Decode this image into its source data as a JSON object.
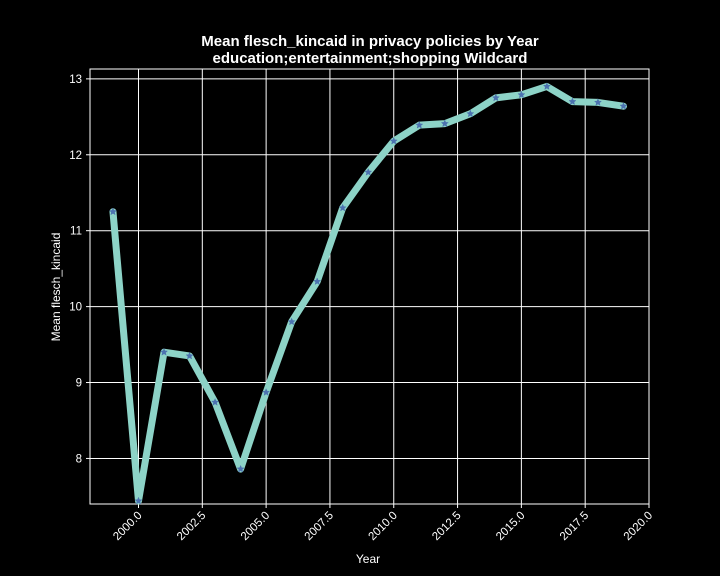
{
  "chart_data": {
    "type": "line",
    "title": "Mean flesch_kincaid in privacy policies by Year",
    "subtitle": "education;entertainment;shopping Wildcard",
    "xlabel": "Year",
    "ylabel": "Mean flesch_kincaid",
    "xlim": [
      1998.1,
      2020.0
    ],
    "ylim": [
      7.4,
      13.13
    ],
    "xticks": [
      "2000.0",
      "2002.5",
      "2005.0",
      "2007.5",
      "2010.0",
      "2012.5",
      "2015.0",
      "2017.5",
      "2020.0"
    ],
    "xtick_values": [
      2000.0,
      2002.5,
      2005.0,
      2007.5,
      2010.0,
      2012.5,
      2015.0,
      2017.5,
      2020.0
    ],
    "yticks": [
      "8",
      "9",
      "10",
      "11",
      "12",
      "13"
    ],
    "ytick_values": [
      8,
      9,
      10,
      11,
      12,
      13
    ],
    "grid": true,
    "series": [
      {
        "x": [
          1999,
          2000,
          2001,
          2002,
          2003,
          2004,
          2005,
          2006,
          2007,
          2008,
          2009,
          2010,
          2011,
          2012,
          2013,
          2014,
          2015,
          2016,
          2017,
          2018,
          2019
        ],
        "values": [
          11.25,
          7.44,
          9.4,
          9.35,
          8.74,
          7.86,
          8.87,
          9.8,
          10.33,
          11.3,
          11.77,
          12.18,
          12.39,
          12.41,
          12.54,
          12.75,
          12.79,
          12.9,
          12.7,
          12.69,
          12.64
        ],
        "line_color": "#8dd3c7",
        "marker_color": "#4c72b0",
        "marker": "star"
      }
    ],
    "colors": {
      "background": "#000000",
      "frame": "#ffffff",
      "grid": "#ffffff"
    }
  }
}
